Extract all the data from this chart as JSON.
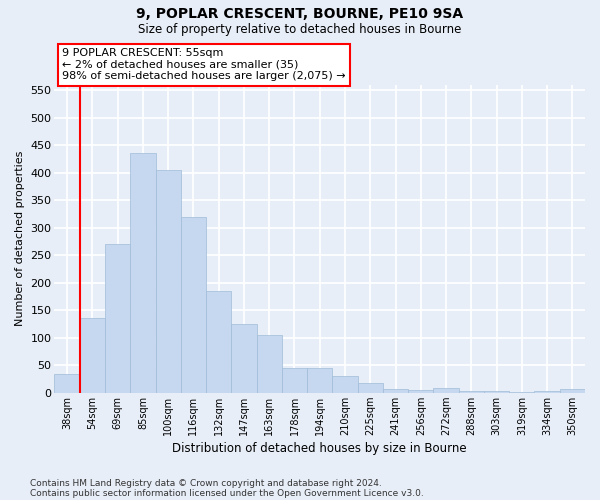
{
  "title1": "9, POPLAR CRESCENT, BOURNE, PE10 9SA",
  "title2": "Size of property relative to detached houses in Bourne",
  "xlabel": "Distribution of detached houses by size in Bourne",
  "ylabel": "Number of detached properties",
  "categories": [
    "38sqm",
    "54sqm",
    "69sqm",
    "85sqm",
    "100sqm",
    "116sqm",
    "132sqm",
    "147sqm",
    "163sqm",
    "178sqm",
    "194sqm",
    "210sqm",
    "225sqm",
    "241sqm",
    "256sqm",
    "272sqm",
    "288sqm",
    "303sqm",
    "319sqm",
    "334sqm",
    "350sqm"
  ],
  "values": [
    35,
    135,
    270,
    435,
    405,
    320,
    185,
    125,
    105,
    45,
    45,
    30,
    18,
    7,
    5,
    8,
    4,
    3,
    1,
    4,
    6
  ],
  "bar_color": "#c5d8f0",
  "bar_edge_color": "#a0bcd8",
  "vline_bar_index": 1,
  "vline_color": "red",
  "annotation_text": "9 POPLAR CRESCENT: 55sqm\n← 2% of detached houses are smaller (35)\n98% of semi-detached houses are larger (2,075) →",
  "annotation_box_facecolor": "white",
  "annotation_box_edgecolor": "red",
  "ylim_max": 560,
  "yticks": [
    0,
    50,
    100,
    150,
    200,
    250,
    300,
    350,
    400,
    450,
    500,
    550
  ],
  "background_color": "#e8eef8",
  "grid_color": "white",
  "footnote_line1": "Contains HM Land Registry data © Crown copyright and database right 2024.",
  "footnote_line2": "Contains public sector information licensed under the Open Government Licence v3.0."
}
